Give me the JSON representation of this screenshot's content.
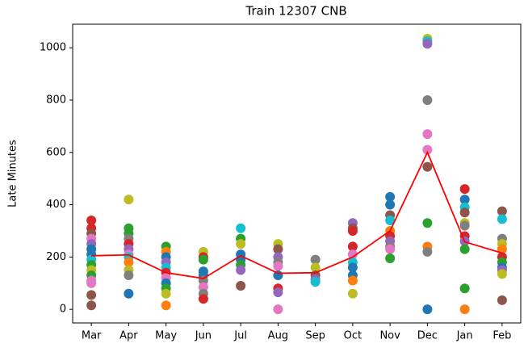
{
  "chart_data": {
    "type": "scatter",
    "title": "Train 12307 CNB",
    "y_label": "Late Minutes",
    "categories": [
      "Mar",
      "Apr",
      "May",
      "Jun",
      "Jul",
      "Aug",
      "Sep",
      "Oct",
      "Nov",
      "Dec",
      "Jan",
      "Feb"
    ],
    "ylim": [
      -52,
      1090
    ],
    "yticks": [
      0,
      200,
      400,
      600,
      800,
      1000
    ],
    "scatter_values": [
      [
        340,
        310,
        290,
        270,
        250,
        230,
        210,
        190,
        170,
        150,
        130,
        110,
        100,
        55,
        15
      ],
      [
        420,
        310,
        290,
        270,
        250,
        230,
        210,
        200,
        180,
        150,
        130,
        60
      ],
      [
        240,
        220,
        200,
        180,
        160,
        140,
        120,
        100,
        80,
        60,
        15
      ],
      [
        220,
        200,
        190,
        145,
        130,
        110,
        85,
        60,
        40
      ],
      [
        310,
        270,
        250,
        210,
        190,
        170,
        150,
        90
      ],
      [
        250,
        230,
        200,
        180,
        165,
        130,
        80,
        65,
        0
      ],
      [
        190,
        160,
        130,
        115,
        105
      ],
      [
        330,
        310,
        300,
        240,
        210,
        180,
        160,
        130,
        110,
        60
      ],
      [
        430,
        400,
        360,
        340,
        300,
        280,
        260,
        240,
        230,
        195
      ],
      [
        1035,
        1025,
        1015,
        800,
        670,
        610,
        545,
        330,
        240,
        220,
        0
      ],
      [
        460,
        420,
        390,
        370,
        330,
        320,
        280,
        260,
        230,
        80,
        0
      ],
      [
        375,
        345,
        270,
        250,
        230,
        200,
        180,
        160,
        150,
        135,
        35
      ]
    ],
    "scatter_colors": [
      [
        "#d62728",
        "#d62728",
        "#8c564b",
        "#e377c2",
        "#9467bd",
        "#1f77b4",
        "#1f77b4",
        "#17becf",
        "#2ca02c",
        "#bcbd22",
        "#2ca02c",
        "#e377c2",
        "#e377c2",
        "#8c564b",
        "#8c564b"
      ],
      [
        "#bcbd22",
        "#2ca02c",
        "#2ca02c",
        "#7f7f7f",
        "#d62728",
        "#9467bd",
        "#e377c2",
        "#17becf",
        "#ff7f0e",
        "#bcbd22",
        "#7f7f7f",
        "#1f77b4"
      ],
      [
        "#2ca02c",
        "#ff7f0e",
        "#1f77b4",
        "#9467bd",
        "#17becf",
        "#d62728",
        "#e377c2",
        "#1f77b4",
        "#2ca02c",
        "#bcbd22",
        "#ff7f0e"
      ],
      [
        "#bcbd22",
        "#d62728",
        "#2ca02c",
        "#1f77b4",
        "#1f77b4",
        "#7f7f7f",
        "#e377c2",
        "#7f7f7f",
        "#d62728"
      ],
      [
        "#17becf",
        "#2ca02c",
        "#bcbd22",
        "#1f77b4",
        "#1f77b4",
        "#2ca02c",
        "#9467bd",
        "#8c564b"
      ],
      [
        "#bcbd22",
        "#8c564b",
        "#9467bd",
        "#7f7f7f",
        "#e377c2",
        "#1f77b4",
        "#d62728",
        "#9467bd",
        "#e377c2"
      ],
      [
        "#7f7f7f",
        "#bcbd22",
        "#8c564b",
        "#9467bd",
        "#17becf"
      ],
      [
        "#9467bd",
        "#8c564b",
        "#d62728",
        "#d62728",
        "#e377c2",
        "#17becf",
        "#1f77b4",
        "#1f77b4",
        "#ff7f0e",
        "#bcbd22"
      ],
      [
        "#1f77b4",
        "#1f77b4",
        "#8c564b",
        "#17becf",
        "#ff7f0e",
        "#d62728",
        "#9467bd",
        "#7f7f7f",
        "#e377c2",
        "#2ca02c"
      ],
      [
        "#bcbd22",
        "#17becf",
        "#9467bd",
        "#7f7f7f",
        "#e377c2",
        "#e377c2",
        "#8c564b",
        "#2ca02c",
        "#ff7f0e",
        "#7f7f7f",
        "#1f77b4"
      ],
      [
        "#d62728",
        "#1f77b4",
        "#17becf",
        "#8c564b",
        "#bcbd22",
        "#7f7f7f",
        "#d62728",
        "#9467bd",
        "#2ca02c",
        "#2ca02c",
        "#ff7f0e"
      ],
      [
        "#8c564b",
        "#17becf",
        "#7f7f7f",
        "#bcbd22",
        "#ff7f0e",
        "#d62728",
        "#2ca02c",
        "#1f77b4",
        "#9467bd",
        "#bcbd22",
        "#8c564b"
      ]
    ],
    "line": {
      "color": "#ff0000",
      "values": [
        205,
        208,
        140,
        118,
        205,
        138,
        140,
        200,
        300,
        600,
        258,
        215
      ]
    }
  }
}
